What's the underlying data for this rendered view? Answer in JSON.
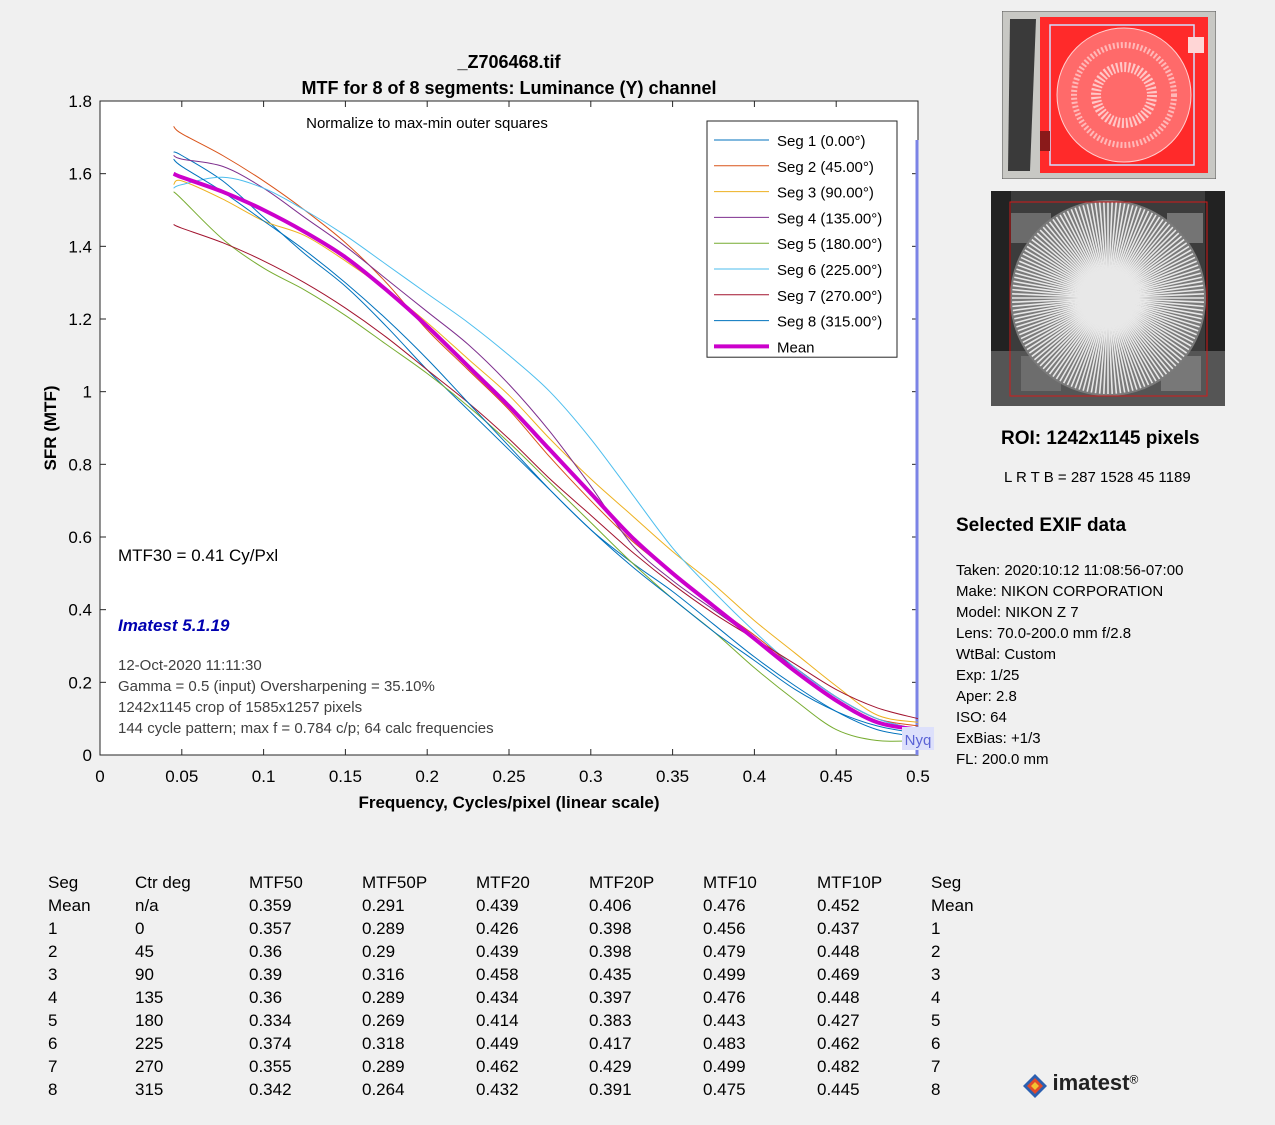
{
  "chart_data": {
    "type": "line",
    "title": "_Z706468.tif",
    "subtitle": "MTF for 8 of 8 segments:  Luminance (Y) channel",
    "annotation": "Normalize to max-min outer squares",
    "xlabel": "Frequency, Cycles/pixel (linear scale)",
    "ylabel": "SFR (MTF)",
    "xlim": [
      0,
      0.5
    ],
    "ylim": [
      0,
      1.8
    ],
    "xticks": [
      "0",
      "0.05",
      "0.1",
      "0.15",
      "0.2",
      "0.25",
      "0.3",
      "0.35",
      "0.4",
      "0.45",
      "0.5"
    ],
    "yticks": [
      "0",
      "0.2",
      "0.4",
      "0.6",
      "0.8",
      "1",
      "1.2",
      "1.4",
      "1.6",
      "1.8"
    ],
    "x": [
      0.045,
      0.05,
      0.075,
      0.1,
      0.125,
      0.15,
      0.175,
      0.2,
      0.225,
      0.25,
      0.275,
      0.3,
      0.325,
      0.35,
      0.375,
      0.4,
      0.425,
      0.45,
      0.475,
      0.5
    ],
    "series": [
      {
        "name": "Seg 1 (0.00°)",
        "color": "#0072bd",
        "values": [
          1.66,
          1.65,
          1.58,
          1.48,
          1.38,
          1.29,
          1.18,
          1.06,
          0.95,
          0.84,
          0.73,
          0.62,
          0.53,
          0.45,
          0.36,
          0.27,
          0.19,
          0.12,
          0.07,
          0.05
        ]
      },
      {
        "name": "Seg 2 (45.00°)",
        "color": "#d95319",
        "values": [
          1.73,
          1.71,
          1.65,
          1.58,
          1.5,
          1.41,
          1.3,
          1.17,
          1.06,
          0.95,
          0.82,
          0.7,
          0.59,
          0.5,
          0.41,
          0.33,
          0.24,
          0.16,
          0.1,
          0.08
        ]
      },
      {
        "name": "Seg 3 (90.00°)",
        "color": "#edb120",
        "values": [
          1.57,
          1.58,
          1.53,
          1.47,
          1.43,
          1.36,
          1.28,
          1.19,
          1.09,
          0.99,
          0.87,
          0.76,
          0.66,
          0.56,
          0.47,
          0.37,
          0.28,
          0.19,
          0.11,
          0.09
        ]
      },
      {
        "name": "Seg 4 (135.00°)",
        "color": "#7e2f8e",
        "values": [
          1.65,
          1.64,
          1.62,
          1.56,
          1.48,
          1.4,
          1.31,
          1.22,
          1.13,
          1.02,
          0.89,
          0.74,
          0.58,
          0.48,
          0.4,
          0.32,
          0.24,
          0.16,
          0.1,
          0.07
        ]
      },
      {
        "name": "Seg 5 (180.00°)",
        "color": "#77ac30",
        "values": [
          1.55,
          1.53,
          1.42,
          1.34,
          1.28,
          1.21,
          1.13,
          1.05,
          0.96,
          0.86,
          0.75,
          0.64,
          0.53,
          0.43,
          0.34,
          0.24,
          0.15,
          0.07,
          0.04,
          0.04
        ]
      },
      {
        "name": "Seg 6 (225.00°)",
        "color": "#4dbeee",
        "values": [
          1.56,
          1.57,
          1.59,
          1.56,
          1.5,
          1.43,
          1.35,
          1.27,
          1.19,
          1.1,
          1.0,
          0.87,
          0.72,
          0.57,
          0.45,
          0.34,
          0.24,
          0.16,
          0.1,
          0.07
        ]
      },
      {
        "name": "Seg 7 (270.00°)",
        "color": "#a2142f",
        "values": [
          1.46,
          1.45,
          1.41,
          1.36,
          1.3,
          1.23,
          1.15,
          1.06,
          0.97,
          0.87,
          0.76,
          0.66,
          0.56,
          0.47,
          0.39,
          0.32,
          0.25,
          0.18,
          0.13,
          0.1
        ]
      },
      {
        "name": "Seg 8 (315.00°)",
        "color": "#0072bd",
        "values": [
          1.64,
          1.62,
          1.55,
          1.47,
          1.39,
          1.3,
          1.2,
          1.09,
          0.97,
          0.85,
          0.73,
          0.62,
          0.52,
          0.43,
          0.34,
          0.26,
          0.18,
          0.12,
          0.08,
          0.06
        ]
      },
      {
        "name": "Mean",
        "color": "#cc00cc",
        "width": 4,
        "values": [
          1.6,
          1.59,
          1.55,
          1.5,
          1.44,
          1.37,
          1.28,
          1.18,
          1.07,
          0.96,
          0.84,
          0.72,
          0.6,
          0.5,
          0.41,
          0.32,
          0.23,
          0.15,
          0.09,
          0.07
        ]
      }
    ],
    "nyquist_label": "Nyq",
    "texts": {
      "mtf30": "MTF30 = 0.41 Cy/Pxl",
      "version": "Imatest 5.1.19",
      "datetime": "12-Oct-2020 11:11:30",
      "gamma": "Gamma = 0.5 (input)  Oversharpening = 35.10%",
      "crop": "1242x1145 crop of 1585x1257 pixels",
      "pattern": "144 cycle pattern; max f = 0.784 c/p;  64 calc frequencies"
    },
    "legend_position": "top-right"
  },
  "roi": {
    "title": "ROI:  1242x1145 pixels",
    "bounds": "L R  T B = 287 1528  45 1189"
  },
  "exif": {
    "title": "Selected EXIF data",
    "lines": [
      "Taken: 2020:10:12 11:08:56-07:00",
      "Make:  NIKON CORPORATION",
      "Model: NIKON Z 7",
      "Lens:  70.0-200.0 mm f/2.8",
      "WtBal: Custom",
      "Exp:   1/25",
      "Aper:  2.8",
      "ISO:   64",
      "ExBias: +1/3",
      "FL:  200.0 mm"
    ]
  },
  "results_table": {
    "columns": [
      "Seg",
      "Ctr deg",
      "MTF50",
      "MTF50P",
      "MTF20",
      "MTF20P",
      "MTF10",
      "MTF10P",
      "Seg"
    ],
    "rows": [
      [
        "Mean",
        "n/a",
        "0.359",
        "0.291",
        "0.439",
        "0.406",
        "0.476",
        "0.452",
        "Mean"
      ],
      [
        "1",
        "0",
        "0.357",
        "0.289",
        "0.426",
        "0.398",
        "0.456",
        "0.437",
        "1"
      ],
      [
        "2",
        "45",
        "0.36",
        "0.29",
        "0.439",
        "0.398",
        "0.479",
        "0.448",
        "2"
      ],
      [
        "3",
        "90",
        "0.39",
        "0.316",
        "0.458",
        "0.435",
        "0.499",
        "0.469",
        "3"
      ],
      [
        "4",
        "135",
        "0.36",
        "0.289",
        "0.434",
        "0.397",
        "0.476",
        "0.448",
        "4"
      ],
      [
        "5",
        "180",
        "0.334",
        "0.269",
        "0.414",
        "0.383",
        "0.443",
        "0.427",
        "5"
      ],
      [
        "6",
        "225",
        "0.374",
        "0.318",
        "0.449",
        "0.417",
        "0.483",
        "0.462",
        "6"
      ],
      [
        "7",
        "270",
        "0.355",
        "0.289",
        "0.462",
        "0.429",
        "0.499",
        "0.482",
        "7"
      ],
      [
        "8",
        "315",
        "0.342",
        "0.264",
        "0.432",
        "0.391",
        "0.475",
        "0.445",
        "8"
      ]
    ]
  },
  "logo": {
    "text": "imatest",
    "mark": "®"
  }
}
